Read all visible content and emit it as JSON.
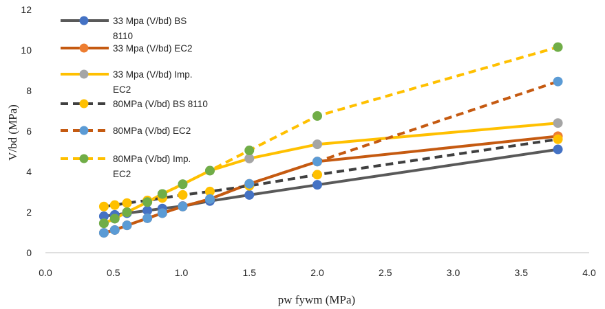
{
  "chart_data": {
    "type": "line",
    "xlabel": "pw fywm (MPa)",
    "ylabel": "V/bd (MPa)",
    "xlim": [
      0,
      4
    ],
    "ylim": [
      0,
      12
    ],
    "x_ticks": [
      "0.0",
      "0.5",
      "1.0",
      "1.5",
      "2.0",
      "2.5",
      "3.0",
      "3.5",
      "4.0"
    ],
    "y_ticks": [
      "0",
      "2",
      "4",
      "6",
      "8",
      "10",
      "12"
    ],
    "grid": false,
    "legend_position": "top-left",
    "x": [
      0.43,
      0.51,
      0.6,
      0.75,
      0.86,
      1.01,
      1.21,
      1.5,
      2.0,
      3.77
    ],
    "series": [
      {
        "name_lines": [
          "33 Mpa (V/bd) BS",
          "8110"
        ],
        "line_color": "#595959",
        "marker_color": "#4472C4",
        "dashed": false,
        "values": [
          1.8,
          1.87,
          1.95,
          2.08,
          2.18,
          2.3,
          2.55,
          2.85,
          3.35,
          5.1
        ]
      },
      {
        "name_lines": [
          "33 Mpa (V/bd) EC2"
        ],
        "line_color": "#C55A11",
        "marker_color": "#ED7D31",
        "dashed": false,
        "values": [
          0.98,
          1.12,
          1.35,
          1.7,
          1.95,
          2.28,
          2.65,
          3.4,
          4.5,
          5.75
        ]
      },
      {
        "name_lines": [
          "33 Mpa (V/bd) Imp.",
          "EC2"
        ],
        "line_color": "#FFC000",
        "marker_color": "#A5A5A5",
        "dashed": false,
        "values": [
          1.45,
          1.68,
          2.0,
          2.5,
          2.9,
          3.38,
          4.05,
          4.65,
          5.35,
          6.4
        ]
      },
      {
        "name_lines": [
          "80MPa (V/bd) BS 8110"
        ],
        "line_color": "#404040",
        "marker_color": "#FFC000",
        "dashed": true,
        "values": [
          2.28,
          2.35,
          2.45,
          2.58,
          2.7,
          2.85,
          3.02,
          3.3,
          3.85,
          5.6
        ]
      },
      {
        "name_lines": [
          "80MPa (V/bd) EC2"
        ],
        "line_color": "#C55A11",
        "marker_color": "#5B9BD5",
        "dashed": true,
        "values": [
          0.98,
          1.12,
          1.35,
          1.7,
          1.95,
          2.28,
          2.65,
          3.4,
          4.5,
          8.45
        ]
      },
      {
        "name_lines": [
          "80MPa (V/bd) Imp.",
          "EC2"
        ],
        "line_color": "#FFC000",
        "marker_color": "#70AD47",
        "dashed": true,
        "values": [
          1.45,
          1.68,
          2.0,
          2.5,
          2.9,
          3.38,
          4.05,
          5.05,
          6.75,
          10.15
        ]
      }
    ]
  }
}
